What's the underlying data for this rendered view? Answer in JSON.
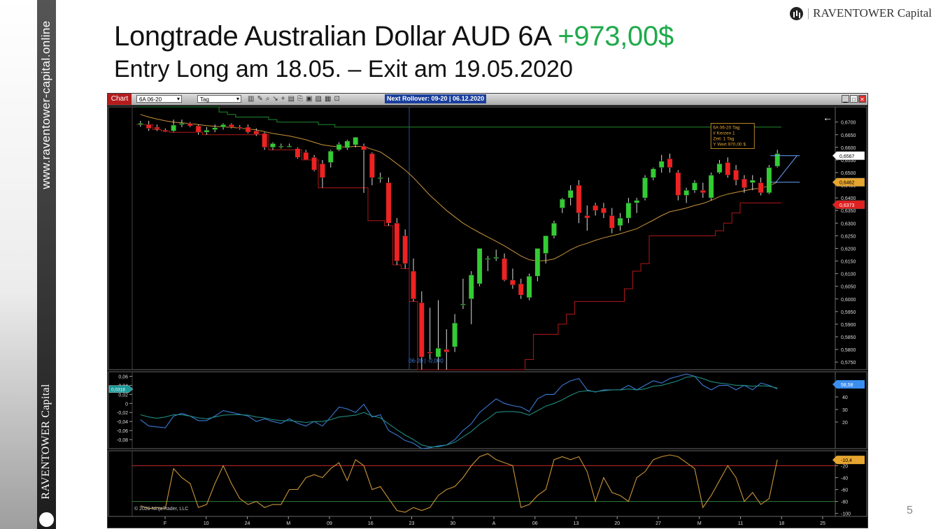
{
  "sidebar": {
    "url": "www.raventower-capital.online",
    "brand": "RAVENTOWER Capital"
  },
  "header": {
    "title": "Longtrade Australian Dollar AUD 6A",
    "profit": "+973,00$",
    "subtitle": "Entry Long am 18.05. – Exit am 19.05.2020"
  },
  "brand_top": {
    "separator": "|",
    "name": "RAVENTOWER Capital"
  },
  "page_number": "5",
  "colors": {
    "profit": "#1faa4b",
    "up_candle": "#33cc33",
    "down_candle": "#ee2222",
    "chart_bg": "#000000"
  },
  "chart_window": {
    "tab_label": "Chart",
    "instrument": "6A 06-20",
    "period": "Tag",
    "rollover": "Next Rollover: 09-20 | 06.12.2020",
    "window_buttons": [
      "▁",
      "□",
      "✕"
    ],
    "copyright": "© 2020 NinjaTrader, LLC",
    "vertical_marker_label": "06-20 | -0,000",
    "back_arrow": "←"
  },
  "chart_data": [
    {
      "type": "candlestick",
      "panel": "price",
      "instrument": "6A 06-20",
      "ylim": [
        0.572,
        0.676
      ],
      "y_ticks": [
        "0,6700",
        "0,6650",
        "0,6600",
        "0,6550",
        "0,6500",
        "0,6450",
        "0,6400",
        "0,6350",
        "0,6300",
        "0,6250",
        "0,6200",
        "0,6150",
        "0,6100",
        "0,6050",
        "0,6000",
        "0,5950",
        "0,5900",
        "0,5850",
        "0,5800",
        "0,5750"
      ],
      "price_flags": [
        {
          "label": "0,6567",
          "value": 0.6567,
          "color": "#ffffff",
          "text_color": "#000000"
        },
        {
          "label": "0,6462",
          "value": 0.6462,
          "color": "#e6a530",
          "text_color": "#000000"
        },
        {
          "label": "0,6373",
          "value": 0.6373,
          "color": "#e02020",
          "text_color": "#ffffff"
        }
      ],
      "info_box": [
        "6A 06-20 Tag",
        "# Kerzen   1",
        "Zeit:      1 Tag",
        "Y Wert    970,00 $"
      ],
      "trade_box": {
        "high": 0.6567,
        "low": 0.6462
      },
      "candles": [
        {
          "o": 0.669,
          "h": 0.6705,
          "l": 0.6682,
          "c": 0.6695
        },
        {
          "o": 0.669,
          "h": 0.6705,
          "l": 0.6665,
          "c": 0.6675
        },
        {
          "o": 0.668,
          "h": 0.669,
          "l": 0.6665,
          "c": 0.6672
        },
        {
          "o": 0.6668,
          "h": 0.6675,
          "l": 0.666,
          "c": 0.6662
        },
        {
          "o": 0.6665,
          "h": 0.671,
          "l": 0.666,
          "c": 0.6688
        },
        {
          "o": 0.669,
          "h": 0.671,
          "l": 0.668,
          "c": 0.6695
        },
        {
          "o": 0.6695,
          "h": 0.67,
          "l": 0.668,
          "c": 0.6685
        },
        {
          "o": 0.6685,
          "h": 0.669,
          "l": 0.665,
          "c": 0.666
        },
        {
          "o": 0.666,
          "h": 0.668,
          "l": 0.665,
          "c": 0.6668
        },
        {
          "o": 0.667,
          "h": 0.669,
          "l": 0.666,
          "c": 0.6678
        },
        {
          "o": 0.668,
          "h": 0.6695,
          "l": 0.667,
          "c": 0.669
        },
        {
          "o": 0.669,
          "h": 0.6695,
          "l": 0.6675,
          "c": 0.668
        },
        {
          "o": 0.668,
          "h": 0.6688,
          "l": 0.667,
          "c": 0.6675
        },
        {
          "o": 0.668,
          "h": 0.669,
          "l": 0.6655,
          "c": 0.666
        },
        {
          "o": 0.6665,
          "h": 0.6675,
          "l": 0.6645,
          "c": 0.6652
        },
        {
          "o": 0.6655,
          "h": 0.666,
          "l": 0.659,
          "c": 0.66
        },
        {
          "o": 0.66,
          "h": 0.662,
          "l": 0.659,
          "c": 0.6615
        },
        {
          "o": 0.6605,
          "h": 0.6615,
          "l": 0.6595,
          "c": 0.6605
        },
        {
          "o": 0.6605,
          "h": 0.6615,
          "l": 0.66,
          "c": 0.6605
        },
        {
          "o": 0.6595,
          "h": 0.66,
          "l": 0.6555,
          "c": 0.656
        },
        {
          "o": 0.658,
          "h": 0.659,
          "l": 0.655,
          "c": 0.655
        },
        {
          "o": 0.656,
          "h": 0.657,
          "l": 0.6505,
          "c": 0.651
        },
        {
          "o": 0.6535,
          "h": 0.655,
          "l": 0.644,
          "c": 0.648
        },
        {
          "o": 0.654,
          "h": 0.659,
          "l": 0.652,
          "c": 0.6585
        },
        {
          "o": 0.659,
          "h": 0.662,
          "l": 0.6585,
          "c": 0.6612
        },
        {
          "o": 0.6598,
          "h": 0.663,
          "l": 0.659,
          "c": 0.6625
        },
        {
          "o": 0.661,
          "h": 0.664,
          "l": 0.66,
          "c": 0.664
        },
        {
          "o": 0.6605,
          "h": 0.6615,
          "l": 0.642,
          "c": 0.659
        },
        {
          "o": 0.6575,
          "h": 0.658,
          "l": 0.645,
          "c": 0.648
        },
        {
          "o": 0.648,
          "h": 0.65,
          "l": 0.646,
          "c": 0.648
        },
        {
          "o": 0.646,
          "h": 0.648,
          "l": 0.629,
          "c": 0.63
        },
        {
          "o": 0.63,
          "h": 0.632,
          "l": 0.6135,
          "c": 0.615
        },
        {
          "o": 0.625,
          "h": 0.6275,
          "l": 0.612,
          "c": 0.614
        },
        {
          "o": 0.611,
          "h": 0.616,
          "l": 0.599,
          "c": 0.6
        },
        {
          "o": 0.5985,
          "h": 0.603,
          "l": 0.572,
          "c": 0.577
        },
        {
          "o": 0.579,
          "h": 0.5965,
          "l": 0.576,
          "c": 0.5785
        },
        {
          "o": 0.577,
          "h": 0.5995,
          "l": 0.572,
          "c": 0.5805
        },
        {
          "o": 0.58,
          "h": 0.588,
          "l": 0.572,
          "c": 0.579
        },
        {
          "o": 0.581,
          "h": 0.594,
          "l": 0.579,
          "c": 0.5905
        },
        {
          "o": 0.598,
          "h": 0.608,
          "l": 0.596,
          "c": 0.598
        },
        {
          "o": 0.6,
          "h": 0.611,
          "l": 0.59,
          "c": 0.6095
        },
        {
          "o": 0.606,
          "h": 0.62,
          "l": 0.605,
          "c": 0.62
        },
        {
          "o": 0.616,
          "h": 0.617,
          "l": 0.611,
          "c": 0.616
        },
        {
          "o": 0.616,
          "h": 0.6195,
          "l": 0.615,
          "c": 0.6165
        },
        {
          "o": 0.616,
          "h": 0.618,
          "l": 0.607,
          "c": 0.6075
        },
        {
          "o": 0.6075,
          "h": 0.612,
          "l": 0.604,
          "c": 0.6055
        },
        {
          "o": 0.606,
          "h": 0.608,
          "l": 0.6,
          "c": 0.6015
        },
        {
          "o": 0.6005,
          "h": 0.61,
          "l": 0.5995,
          "c": 0.609
        },
        {
          "o": 0.609,
          "h": 0.62,
          "l": 0.607,
          "c": 0.62
        },
        {
          "o": 0.618,
          "h": 0.625,
          "l": 0.614,
          "c": 0.625
        },
        {
          "o": 0.625,
          "h": 0.631,
          "l": 0.624,
          "c": 0.63
        },
        {
          "o": 0.636,
          "h": 0.64,
          "l": 0.634,
          "c": 0.6395
        },
        {
          "o": 0.64,
          "h": 0.645,
          "l": 0.637,
          "c": 0.643
        },
        {
          "o": 0.645,
          "h": 0.647,
          "l": 0.63,
          "c": 0.634
        },
        {
          "o": 0.633,
          "h": 0.637,
          "l": 0.627,
          "c": 0.632
        },
        {
          "o": 0.637,
          "h": 0.638,
          "l": 0.633,
          "c": 0.635
        },
        {
          "o": 0.636,
          "h": 0.638,
          "l": 0.632,
          "c": 0.634
        },
        {
          "o": 0.633,
          "h": 0.636,
          "l": 0.626,
          "c": 0.628
        },
        {
          "o": 0.629,
          "h": 0.634,
          "l": 0.627,
          "c": 0.632
        },
        {
          "o": 0.632,
          "h": 0.64,
          "l": 0.63,
          "c": 0.638
        },
        {
          "o": 0.638,
          "h": 0.64,
          "l": 0.634,
          "c": 0.639
        },
        {
          "o": 0.64,
          "h": 0.649,
          "l": 0.639,
          "c": 0.648
        },
        {
          "o": 0.648,
          "h": 0.652,
          "l": 0.647,
          "c": 0.6515
        },
        {
          "o": 0.652,
          "h": 0.657,
          "l": 0.65,
          "c": 0.6545
        },
        {
          "o": 0.6555,
          "h": 0.6575,
          "l": 0.65,
          "c": 0.652
        },
        {
          "o": 0.65,
          "h": 0.651,
          "l": 0.639,
          "c": 0.641
        },
        {
          "o": 0.641,
          "h": 0.644,
          "l": 0.638,
          "c": 0.643
        },
        {
          "o": 0.643,
          "h": 0.647,
          "l": 0.642,
          "c": 0.646
        },
        {
          "o": 0.643,
          "h": 0.646,
          "l": 0.64,
          "c": 0.642
        },
        {
          "o": 0.64,
          "h": 0.65,
          "l": 0.639,
          "c": 0.649
        },
        {
          "o": 0.65,
          "h": 0.655,
          "l": 0.6495,
          "c": 0.6535
        },
        {
          "o": 0.654,
          "h": 0.656,
          "l": 0.648,
          "c": 0.649
        },
        {
          "o": 0.651,
          "h": 0.653,
          "l": 0.645,
          "c": 0.647
        },
        {
          "o": 0.6475,
          "h": 0.649,
          "l": 0.642,
          "c": 0.644
        },
        {
          "o": 0.646,
          "h": 0.649,
          "l": 0.643,
          "c": 0.647
        },
        {
          "o": 0.646,
          "h": 0.648,
          "l": 0.641,
          "c": 0.642
        },
        {
          "o": 0.642,
          "h": 0.653,
          "l": 0.6415,
          "c": 0.652
        },
        {
          "o": 0.6525,
          "h": 0.659,
          "l": 0.652,
          "c": 0.6575
        }
      ],
      "ema": [
        0.673,
        0.672,
        0.6712,
        0.6705,
        0.67,
        0.6697,
        0.6694,
        0.669,
        0.6686,
        0.6683,
        0.6681,
        0.6679,
        0.6676,
        0.6673,
        0.6669,
        0.6662,
        0.6655,
        0.665,
        0.6645,
        0.6638,
        0.663,
        0.662,
        0.661,
        0.6605,
        0.6602,
        0.6601,
        0.6604,
        0.6603,
        0.6592,
        0.6582,
        0.656,
        0.6535,
        0.651,
        0.648,
        0.6445,
        0.641,
        0.638,
        0.635,
        0.6325,
        0.63,
        0.628,
        0.6262,
        0.6245,
        0.6228,
        0.621,
        0.619,
        0.617,
        0.6155,
        0.615,
        0.6152,
        0.6158,
        0.6175,
        0.6195,
        0.621,
        0.622,
        0.6232,
        0.6242,
        0.625,
        0.6258,
        0.6268,
        0.6278,
        0.6295,
        0.6312,
        0.633,
        0.6345,
        0.6352,
        0.636,
        0.637,
        0.6378,
        0.639,
        0.6405,
        0.6415,
        0.6422,
        0.6428,
        0.6435,
        0.6438,
        0.6448,
        0.6462
      ],
      "upper_channel": [
        0.676,
        0.676,
        0.676,
        0.676,
        0.676,
        0.676,
        0.676,
        0.676,
        0.676,
        0.676,
        0.674,
        0.673,
        0.672,
        0.672,
        0.672,
        0.672,
        0.671,
        0.67,
        0.67,
        0.67,
        0.67,
        0.67,
        0.669,
        0.669,
        0.668,
        0.668,
        0.668,
        0.668,
        0.668,
        0.668,
        0.668,
        0.668,
        0.668,
        0.668,
        0.668,
        0.668,
        0.668,
        0.668,
        0.668,
        0.668,
        0.668,
        0.668,
        0.668,
        0.668,
        0.668,
        0.668,
        0.668,
        0.668,
        0.668,
        0.668,
        0.668,
        0.668,
        0.668,
        0.668,
        0.668,
        0.668,
        0.668,
        0.668,
        0.668,
        0.668,
        0.668,
        0.668,
        0.668,
        0.668,
        0.668,
        0.668,
        0.668,
        0.668,
        0.668,
        0.668,
        0.668,
        0.668,
        0.668,
        0.668,
        0.668,
        0.668,
        0.668,
        0.668
      ],
      "lower_channel": [
        0.669,
        0.669,
        0.667,
        0.6665,
        0.666,
        0.666,
        0.666,
        0.666,
        0.665,
        0.665,
        0.665,
        0.665,
        0.665,
        0.665,
        0.665,
        0.665,
        0.659,
        0.659,
        0.659,
        0.659,
        0.655,
        0.655,
        0.644,
        0.644,
        0.644,
        0.644,
        0.644,
        0.644,
        0.631,
        0.631,
        0.629,
        0.6135,
        0.612,
        0.599,
        0.572,
        0.572,
        0.572,
        0.572,
        0.572,
        0.572,
        0.572,
        0.572,
        0.572,
        0.572,
        0.572,
        0.572,
        0.572,
        0.576,
        0.586,
        0.586,
        0.586,
        0.59,
        0.594,
        0.599,
        0.599,
        0.599,
        0.599,
        0.599,
        0.599,
        0.604,
        0.611,
        0.614,
        0.625,
        0.625,
        0.625,
        0.625,
        0.625,
        0.625,
        0.625,
        0.625,
        0.627,
        0.63,
        0.634,
        0.638,
        0.638,
        0.638,
        0.638,
        0.638
      ]
    },
    {
      "type": "line",
      "panel": "oscillator",
      "left_ticks": [
        "0,06",
        "0,04",
        "0,02",
        "0",
        "-0,02",
        "-0,04",
        "-0,06",
        "-0,08"
      ],
      "left_flag": "0,0318",
      "right_ticks": [
        "50",
        "40",
        "30",
        "20"
      ],
      "right_flag": "58,58",
      "ylim": [
        -0.1,
        0.07
      ],
      "series": [
        {
          "color": "#3a7bd5",
          "values": [
            -0.036,
            -0.05,
            -0.052,
            -0.054,
            -0.028,
            -0.022,
            -0.028,
            -0.038,
            -0.038,
            -0.028,
            -0.016,
            -0.02,
            -0.024,
            -0.028,
            -0.04,
            -0.034,
            -0.04,
            -0.044,
            -0.034,
            -0.044,
            -0.05,
            -0.04,
            -0.05,
            -0.03,
            -0.008,
            -0.012,
            -0.02,
            -0.002,
            -0.03,
            -0.025,
            -0.06,
            -0.07,
            -0.082,
            -0.088,
            -0.1,
            -0.098,
            -0.094,
            -0.092,
            -0.08,
            -0.06,
            -0.045,
            -0.02,
            -0.005,
            0.01,
            0.0,
            -0.005,
            -0.008,
            -0.018,
            0.01,
            0.02,
            0.02,
            0.04,
            0.05,
            0.055,
            0.03,
            0.025,
            0.03,
            0.03,
            0.03,
            0.04,
            0.03,
            0.04,
            0.05,
            0.045,
            0.055,
            0.06,
            0.065,
            0.06,
            0.04,
            0.03,
            0.04,
            0.04,
            0.03,
            0.04,
            0.03,
            0.045,
            0.04,
            0.032
          ]
        },
        {
          "color": "#1f8a80",
          "values": [
            -0.025,
            -0.03,
            -0.033,
            -0.03,
            -0.025,
            -0.025,
            -0.028,
            -0.032,
            -0.034,
            -0.03,
            -0.026,
            -0.025,
            -0.025,
            -0.026,
            -0.03,
            -0.032,
            -0.036,
            -0.038,
            -0.038,
            -0.04,
            -0.042,
            -0.04,
            -0.04,
            -0.036,
            -0.03,
            -0.028,
            -0.026,
            -0.02,
            -0.028,
            -0.032,
            -0.045,
            -0.058,
            -0.07,
            -0.08,
            -0.092,
            -0.096,
            -0.096,
            -0.092,
            -0.086,
            -0.074,
            -0.062,
            -0.046,
            -0.034,
            -0.02,
            -0.018,
            -0.018,
            -0.02,
            -0.026,
            -0.016,
            -0.006,
            0.0,
            0.008,
            0.018,
            0.026,
            0.028,
            0.026,
            0.028,
            0.03,
            0.03,
            0.032,
            0.03,
            0.032,
            0.038,
            0.04,
            0.045,
            0.05,
            0.058,
            0.06,
            0.055,
            0.048,
            0.045,
            0.043,
            0.04,
            0.04,
            0.038,
            0.039,
            0.038,
            0.034
          ]
        }
      ]
    },
    {
      "type": "line",
      "panel": "stochastic",
      "right_ticks": [
        "-20",
        "-40",
        "-60",
        "-80",
        "-100"
      ],
      "right_flag": "-10,4",
      "ylim": [
        -105,
        5
      ],
      "levels": [
        {
          "value": -20,
          "color": "#c62828"
        },
        {
          "value": -80,
          "color": "#2e7d32"
        }
      ],
      "series": [
        {
          "color": "#c9933a",
          "values": [
            -87,
            -92,
            -90,
            -92,
            -25,
            -40,
            -50,
            -90,
            -85,
            -50,
            -20,
            -50,
            -75,
            -85,
            -80,
            -90,
            -85,
            -85,
            -60,
            -60,
            -40,
            -35,
            -40,
            -25,
            -15,
            -45,
            -10,
            -20,
            -60,
            -55,
            -75,
            -95,
            -98,
            -90,
            -95,
            -90,
            -70,
            -60,
            -55,
            -40,
            -20,
            -5,
            0,
            -10,
            -15,
            -20,
            -90,
            -85,
            -70,
            -60,
            -10,
            -5,
            -10,
            -5,
            -30,
            -80,
            -40,
            -65,
            -70,
            -80,
            -40,
            -30,
            -10,
            -5,
            -2,
            -5,
            -15,
            -25,
            -90,
            -70,
            -45,
            -20,
            -40,
            -80,
            -65,
            -85,
            -75,
            -10
          ]
        }
      ]
    }
  ],
  "x_axis_labels": [
    "F",
    "10",
    "24",
    "M",
    "09",
    "16",
    "23",
    "30",
    "A",
    "06",
    "13",
    "20",
    "27",
    "M",
    "11",
    "18",
    "25"
  ]
}
